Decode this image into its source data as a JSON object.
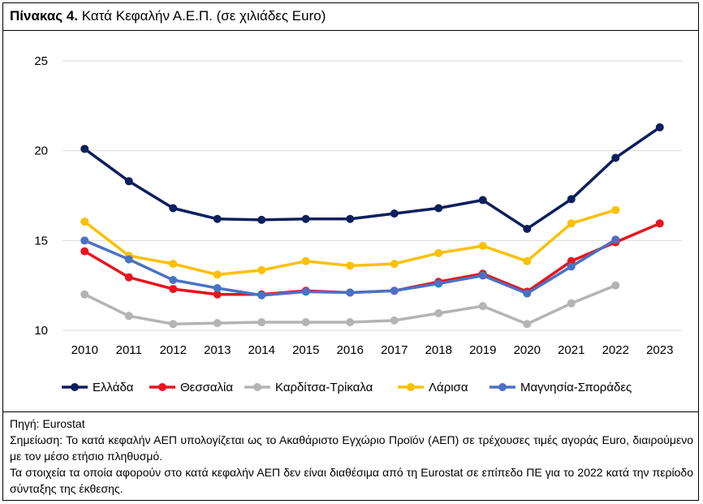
{
  "title": {
    "bold": "Πίνακας 4.",
    "rest": " Κατά Κεφαλήν Α.Ε.Π. (σε χιλιάδες Euro)"
  },
  "notes": {
    "source": "Πηγή: Eurostat",
    "note1": "Σημείωση: Το κατά κεφαλήν ΑΕΠ υπολογίζεται ως το Ακαθάριστο Εγχώριο Προϊόν (ΑΕΠ) σε τρέχουσες τιμές αγοράς Euro, διαιρούμενο με τον μέσο ετήσιο πληθυσμό.",
    "note2": "Τα στοιχεία τα οποία αφορούν στο κατά κεφαλήν ΑΕΠ δεν είναι διαθέσιμα από τη Eurostat σε επίπεδο ΠΕ για το 2022 κατά την περίοδο σύνταξης της έκθεσης."
  },
  "chart_data": {
    "type": "line",
    "title": "Κατά Κεφαλήν Α.Ε.Π. (σε χιλιάδες Euro)",
    "xlabel": "",
    "ylabel": "",
    "categories": [
      "2010",
      "2011",
      "2012",
      "2013",
      "2014",
      "2015",
      "2016",
      "2017",
      "2018",
      "2019",
      "2020",
      "2021",
      "2022",
      "2023"
    ],
    "ylim": [
      10,
      25
    ],
    "yticks": [
      "10",
      "15",
      "20",
      "25"
    ],
    "grid": true,
    "legend_position": "bottom",
    "series": [
      {
        "name": "Ελλάδα",
        "color": "#0b1f5c",
        "values": [
          20.1,
          18.3,
          16.8,
          16.2,
          16.15,
          16.2,
          16.2,
          16.5,
          16.8,
          17.25,
          15.65,
          17.3,
          19.6,
          21.3
        ]
      },
      {
        "name": "Θεσσαλία",
        "color": "#e8141c",
        "values": [
          14.4,
          12.95,
          12.3,
          12.0,
          12.0,
          12.2,
          12.1,
          12.2,
          12.7,
          13.15,
          12.15,
          13.85,
          14.9,
          15.95
        ]
      },
      {
        "name": "Καρδίτσα-Τρίκαλα",
        "color": "#b4b4b4",
        "values": [
          12.0,
          10.8,
          10.35,
          10.4,
          10.45,
          10.45,
          10.45,
          10.55,
          10.95,
          11.35,
          10.35,
          11.5,
          12.5,
          null
        ]
      },
      {
        "name": "Λάρισα",
        "color": "#fbc002",
        "values": [
          16.05,
          14.15,
          13.7,
          13.1,
          13.35,
          13.85,
          13.6,
          13.7,
          14.3,
          14.7,
          13.85,
          15.95,
          16.7,
          null
        ]
      },
      {
        "name": "Μαγνησία-Σποράδες",
        "color": "#4a72c4",
        "values": [
          15.0,
          13.95,
          12.8,
          12.35,
          11.95,
          12.15,
          12.1,
          12.2,
          12.6,
          13.05,
          12.05,
          13.55,
          15.05,
          null
        ]
      }
    ]
  }
}
